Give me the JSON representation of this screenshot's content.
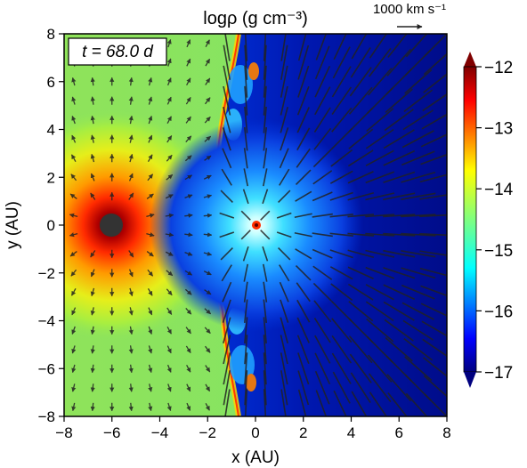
{
  "figure": {
    "title": "logρ (g cm⁻³)",
    "time_label": "t = 68.0 d",
    "reference_arrow_label": "1000 km s⁻¹",
    "xlabel": "x (AU)",
    "ylabel": "y (AU)"
  },
  "axes": {
    "xlim": [
      -8,
      8
    ],
    "ylim": [
      -8,
      8
    ],
    "xticks": [
      "−8",
      "−6",
      "−4",
      "−2",
      "0",
      "2",
      "4",
      "6",
      "8"
    ],
    "yticks": [
      "8",
      "6",
      "4",
      "2",
      "0",
      "−2",
      "−4",
      "−6",
      "−8"
    ]
  },
  "colorbar": {
    "range": [
      -17,
      -12
    ],
    "ticks": [
      "−12",
      "−13",
      "−14",
      "−15",
      "−16",
      "−17"
    ],
    "colormap": "jet"
  },
  "colors": {
    "ambient_green": "#7fe46a",
    "dense_core": "#8b0000",
    "low_density": "#00108f",
    "arrow": "#222222"
  }
}
